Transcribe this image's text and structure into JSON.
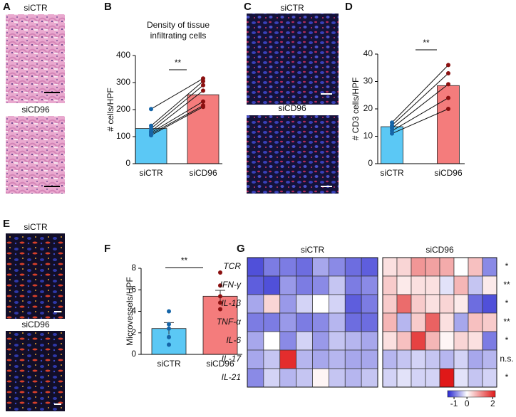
{
  "images": [
    {
      "panel": "A",
      "labels": [
        "siCTR",
        "siCD96"
      ]
    },
    {
      "panel": "C",
      "labels": [
        "siCTR",
        "siCD96"
      ]
    },
    {
      "panel": "E",
      "labels": [
        "siCTR",
        "siCD96"
      ]
    }
  ],
  "chart_data": [
    {
      "panel": "B",
      "type": "bar",
      "title": "Density of tissue infiltrating cells",
      "ylabel": "# cells/HPF",
      "categories": [
        "siCTR",
        "siCD96"
      ],
      "values": [
        130,
        255
      ],
      "colors": [
        "#5bc8f5",
        "#f47c7c"
      ],
      "point_colors": [
        "#1565a8",
        "#8b1010"
      ],
      "paired": true,
      "points": [
        [
          202,
          140,
          130,
          120,
          115,
          110,
          105
        ],
        [
          315,
          305,
          290,
          270,
          230,
          215,
          210
        ]
      ],
      "ylim": [
        0,
        400
      ],
      "yticks": [
        0,
        100,
        200,
        300,
        400
      ],
      "significance": "**"
    },
    {
      "panel": "D",
      "type": "bar",
      "ylabel": "# CD3 cells/HPF",
      "categories": [
        "siCTR",
        "siCD96"
      ],
      "values": [
        13.5,
        28.5
      ],
      "colors": [
        "#5bc8f5",
        "#f47c7c"
      ],
      "point_colors": [
        "#1565a8",
        "#8b1010"
      ],
      "paired": true,
      "points": [
        [
          15,
          14,
          13,
          12,
          11
        ],
        [
          36,
          33,
          29,
          24,
          20
        ]
      ],
      "ylim": [
        0,
        40
      ],
      "yticks": [
        0,
        10,
        20,
        30,
        40
      ],
      "significance": "**"
    },
    {
      "panel": "F",
      "type": "bar",
      "ylabel": "Microvessels/HPF",
      "categories": [
        "siCTR",
        "siCD96"
      ],
      "values": [
        2.4,
        5.4
      ],
      "errors": [
        0.55,
        0.55
      ],
      "colors": [
        "#5bc8f5",
        "#f47c7c"
      ],
      "point_colors": [
        "#1565a8",
        "#8b1010"
      ],
      "paired": false,
      "points": [
        [
          4.0,
          2.8,
          2.4,
          1.6,
          0.9
        ],
        [
          7.6,
          6.4,
          5.4,
          4.8,
          4.2
        ]
      ],
      "ylim": [
        0,
        8
      ],
      "yticks": [
        0,
        2,
        4,
        6,
        8
      ],
      "significance": "**"
    },
    {
      "panel": "G",
      "type": "heatmap",
      "groups": [
        "siCTR",
        "siCD96"
      ],
      "row_labels": [
        "TCR",
        "IFN-γ",
        "IL-1β",
        "TNF-α",
        "IL-6",
        "IL-17",
        "IL-21"
      ],
      "significance": [
        "*",
        "**",
        "*",
        "**",
        "*",
        "n.s.",
        "*"
      ],
      "values": [
        [
          -1.2,
          -0.9,
          -0.9,
          -1.0,
          -0.6,
          -0.8,
          -1.0,
          -1.1,
          0.3,
          0.4,
          1.0,
          0.9,
          0.8,
          0.0,
          0.6,
          -0.8
        ],
        [
          -1.1,
          -1.2,
          -0.7,
          -0.9,
          -0.8,
          -0.4,
          -0.9,
          -0.8,
          0.5,
          0.2,
          0.3,
          0.3,
          -0.2,
          0.7,
          -0.4,
          0.2
        ],
        [
          -0.6,
          0.4,
          -0.7,
          -0.3,
          0.0,
          -0.3,
          -1.1,
          -0.9,
          0.5,
          1.4,
          0.5,
          0.3,
          0.4,
          0.2,
          -1.0,
          -1.2
        ],
        [
          -0.9,
          -0.9,
          -0.7,
          -0.9,
          -0.8,
          -0.5,
          -1.0,
          -1.0,
          0.7,
          -0.5,
          0.5,
          1.5,
          0.3,
          -0.6,
          0.6,
          0.5
        ],
        [
          -0.6,
          0.0,
          -0.8,
          -0.3,
          -0.7,
          -0.4,
          -0.5,
          -0.6,
          0.3,
          0.6,
          1.8,
          0.7,
          0.1,
          0.4,
          0.3,
          -0.9
        ],
        [
          -0.6,
          -0.4,
          2.0,
          -0.5,
          -0.6,
          -0.5,
          -0.6,
          -0.6,
          -0.5,
          -0.4,
          -0.3,
          -0.4,
          -0.5,
          -0.3,
          -0.6,
          -0.5
        ],
        [
          -0.8,
          -0.3,
          -0.5,
          -0.4,
          0.1,
          -0.4,
          -0.5,
          -0.4,
          -0.3,
          -0.2,
          -0.3,
          -0.3,
          2.2,
          -0.2,
          -0.4,
          -0.3
        ]
      ],
      "colors": [
        "#2424d0",
        "#ffffff",
        "#e01818"
      ],
      "clim": [
        -1.5,
        2.2
      ],
      "colorbar_ticks": [
        -1,
        0,
        2
      ]
    }
  ]
}
